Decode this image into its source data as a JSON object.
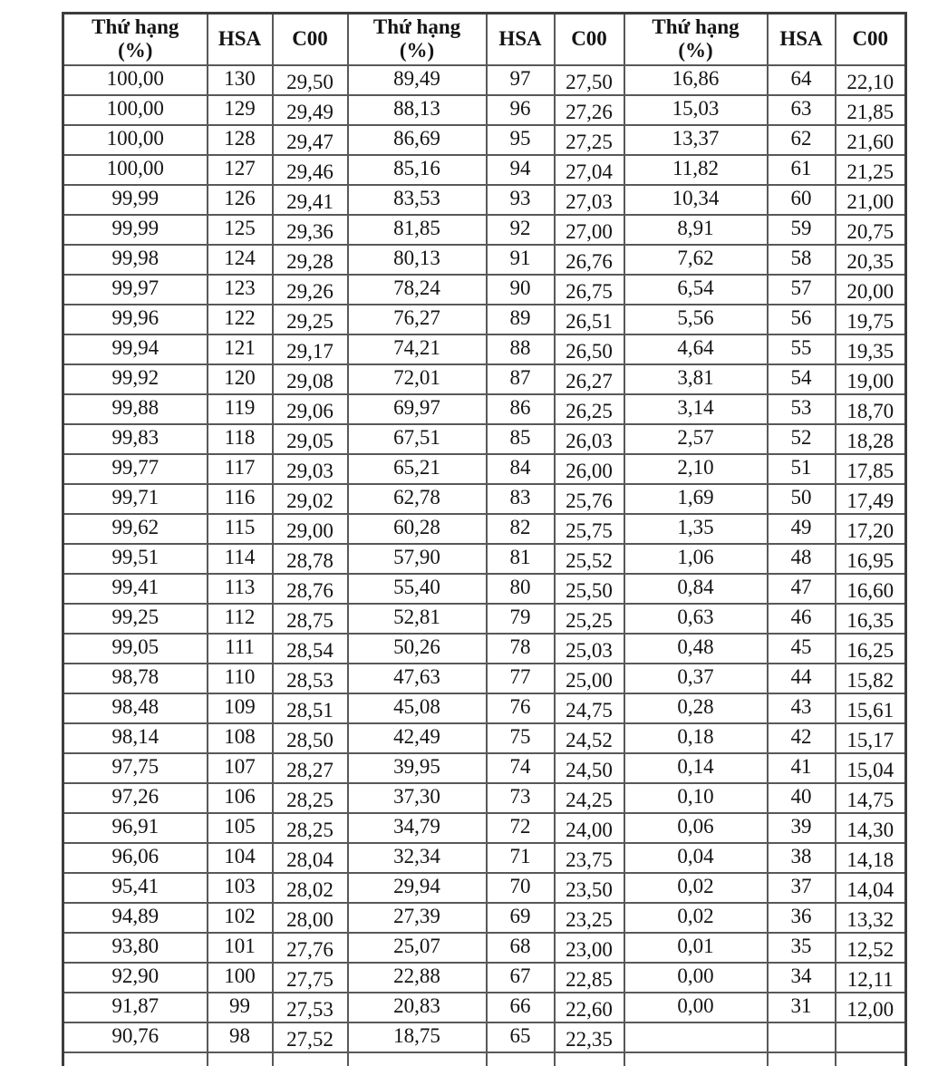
{
  "table": {
    "header": {
      "rank_line1": "Thứ hạng",
      "rank_line2": "(%)",
      "hsa": "HSA",
      "c00": "C00"
    },
    "group_count": 3,
    "columns_per_group": [
      "rank",
      "hsa",
      "c00"
    ],
    "rows": [
      [
        "100,00",
        "130",
        "29,50",
        "89,49",
        "97",
        "27,50",
        "16,86",
        "64",
        "22,10"
      ],
      [
        "100,00",
        "129",
        "29,49",
        "88,13",
        "96",
        "27,26",
        "15,03",
        "63",
        "21,85"
      ],
      [
        "100,00",
        "128",
        "29,47",
        "86,69",
        "95",
        "27,25",
        "13,37",
        "62",
        "21,60"
      ],
      [
        "100,00",
        "127",
        "29,46",
        "85,16",
        "94",
        "27,04",
        "11,82",
        "61",
        "21,25"
      ],
      [
        "99,99",
        "126",
        "29,41",
        "83,53",
        "93",
        "27,03",
        "10,34",
        "60",
        "21,00"
      ],
      [
        "99,99",
        "125",
        "29,36",
        "81,85",
        "92",
        "27,00",
        "8,91",
        "59",
        "20,75"
      ],
      [
        "99,98",
        "124",
        "29,28",
        "80,13",
        "91",
        "26,76",
        "7,62",
        "58",
        "20,35"
      ],
      [
        "99,97",
        "123",
        "29,26",
        "78,24",
        "90",
        "26,75",
        "6,54",
        "57",
        "20,00"
      ],
      [
        "99,96",
        "122",
        "29,25",
        "76,27",
        "89",
        "26,51",
        "5,56",
        "56",
        "19,75"
      ],
      [
        "99,94",
        "121",
        "29,17",
        "74,21",
        "88",
        "26,50",
        "4,64",
        "55",
        "19,35"
      ],
      [
        "99,92",
        "120",
        "29,08",
        "72,01",
        "87",
        "26,27",
        "3,81",
        "54",
        "19,00"
      ],
      [
        "99,88",
        "119",
        "29,06",
        "69,97",
        "86",
        "26,25",
        "3,14",
        "53",
        "18,70"
      ],
      [
        "99,83",
        "118",
        "29,05",
        "67,51",
        "85",
        "26,03",
        "2,57",
        "52",
        "18,28"
      ],
      [
        "99,77",
        "117",
        "29,03",
        "65,21",
        "84",
        "26,00",
        "2,10",
        "51",
        "17,85"
      ],
      [
        "99,71",
        "116",
        "29,02",
        "62,78",
        "83",
        "25,76",
        "1,69",
        "50",
        "17,49"
      ],
      [
        "99,62",
        "115",
        "29,00",
        "60,28",
        "82",
        "25,75",
        "1,35",
        "49",
        "17,20"
      ],
      [
        "99,51",
        "114",
        "28,78",
        "57,90",
        "81",
        "25,52",
        "1,06",
        "48",
        "16,95"
      ],
      [
        "99,41",
        "113",
        "28,76",
        "55,40",
        "80",
        "25,50",
        "0,84",
        "47",
        "16,60"
      ],
      [
        "99,25",
        "112",
        "28,75",
        "52,81",
        "79",
        "25,25",
        "0,63",
        "46",
        "16,35"
      ],
      [
        "99,05",
        "111",
        "28,54",
        "50,26",
        "78",
        "25,03",
        "0,48",
        "45",
        "16,25"
      ],
      [
        "98,78",
        "110",
        "28,53",
        "47,63",
        "77",
        "25,00",
        "0,37",
        "44",
        "15,82"
      ],
      [
        "98,48",
        "109",
        "28,51",
        "45,08",
        "76",
        "24,75",
        "0,28",
        "43",
        "15,61"
      ],
      [
        "98,14",
        "108",
        "28,50",
        "42,49",
        "75",
        "24,52",
        "0,18",
        "42",
        "15,17"
      ],
      [
        "97,75",
        "107",
        "28,27",
        "39,95",
        "74",
        "24,50",
        "0,14",
        "41",
        "15,04"
      ],
      [
        "97,26",
        "106",
        "28,25",
        "37,30",
        "73",
        "24,25",
        "0,10",
        "40",
        "14,75"
      ],
      [
        "96,91",
        "105",
        "28,25",
        "34,79",
        "72",
        "24,00",
        "0,06",
        "39",
        "14,30"
      ],
      [
        "96,06",
        "104",
        "28,04",
        "32,34",
        "71",
        "23,75",
        "0,04",
        "38",
        "14,18"
      ],
      [
        "95,41",
        "103",
        "28,02",
        "29,94",
        "70",
        "23,50",
        "0,02",
        "37",
        "14,04"
      ],
      [
        "94,89",
        "102",
        "28,00",
        "27,39",
        "69",
        "23,25",
        "0,02",
        "36",
        "13,32"
      ],
      [
        "93,80",
        "101",
        "27,76",
        "25,07",
        "68",
        "23,00",
        "0,01",
        "35",
        "12,52"
      ],
      [
        "92,90",
        "100",
        "27,75",
        "22,88",
        "67",
        "22,85",
        "0,00",
        "34",
        "12,11"
      ],
      [
        "91,87",
        "99",
        "27,53",
        "20,83",
        "66",
        "22,60",
        "0,00",
        "31",
        "12,00"
      ],
      [
        "90,76",
        "98",
        "27,52",
        "18,75",
        "65",
        "22,35",
        "",
        "",
        ""
      ]
    ]
  },
  "colors": {
    "background": "#ffffff",
    "border_inner": "#585858",
    "border_outer": "#3d3d3d",
    "text": "#141414"
  }
}
